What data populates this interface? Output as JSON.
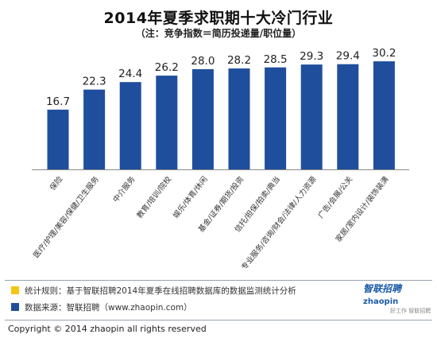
{
  "chart_data": {
    "type": "bar",
    "title": "2014年夏季求职期十大冷门行业",
    "subtitle": "（注：竞争指数＝简历投递量/职位量）",
    "categories": [
      "保险",
      "医疗/护理/美容/保健/卫生服务",
      "中介服务",
      "教育/培训/院校",
      "娱乐/体育/休闲",
      "基金/证券/期货/投资",
      "信托/担保/拍卖/典当",
      "专业服务/咨询/财会/法律/人力资源",
      "广告/会展/公关",
      "家居/室内设计/装饰装潢"
    ],
    "values": [
      16.7,
      22.3,
      24.4,
      26.2,
      28.0,
      28.2,
      28.5,
      29.3,
      29.4,
      30.2
    ],
    "value_labels": [
      "16.7",
      "22.3",
      "24.4",
      "26.2",
      "28.0",
      "28.2",
      "28.5",
      "29.3",
      "29.4",
      "30.2"
    ],
    "ylim": [
      0,
      32
    ],
    "grid": false,
    "colors": {
      "bar": "#1f4e9c"
    }
  },
  "legend": [
    {
      "text": "统计规则：基于智联招聘2014年夏季在线招聘数据库的数据监测统计分析",
      "color": "#f4c514"
    },
    {
      "text": "数据来源：智联招聘（www.zhaopin.com）",
      "color": "#1f4e9c"
    }
  ],
  "logo": {
    "text": "zhaopin",
    "cn": "智联招聘",
    "tagline": "好工作 智联招聘"
  },
  "copyright": "Copyright  ©  2014 zhaopin all rights reserved"
}
